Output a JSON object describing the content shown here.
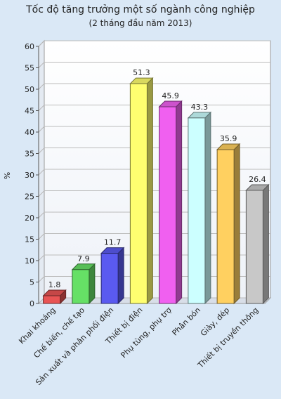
{
  "chart_data": {
    "type": "bar3d",
    "title": "Tốc độ tăng trưởng một số ngành công nghiệp",
    "subtitle": "(2 tháng đầu năm 2013)",
    "y_label": "%",
    "categories": [
      "Khai khoáng",
      "Chế biến, chế tạo",
      "Sản xuất và phân phối điện",
      "Thiết bị điện",
      "Phụ tùng, phụ trợ",
      "Phân bón",
      "Giày, dép",
      "Thiết bị truyền thông"
    ],
    "values": [
      1.8,
      7.9,
      11.7,
      51.3,
      45.9,
      43.3,
      35.9,
      26.4
    ],
    "colors": [
      "#e85454",
      "#66e066",
      "#5a5af0",
      "#ffff70",
      "#f060f0",
      "#ccffff",
      "#ffd060",
      "#c8c8c8"
    ],
    "ylim": [
      0,
      60
    ],
    "yticks": [
      0,
      5,
      10,
      15,
      20,
      25,
      30,
      35,
      40,
      45,
      50,
      55,
      60
    ],
    "grid": true
  }
}
